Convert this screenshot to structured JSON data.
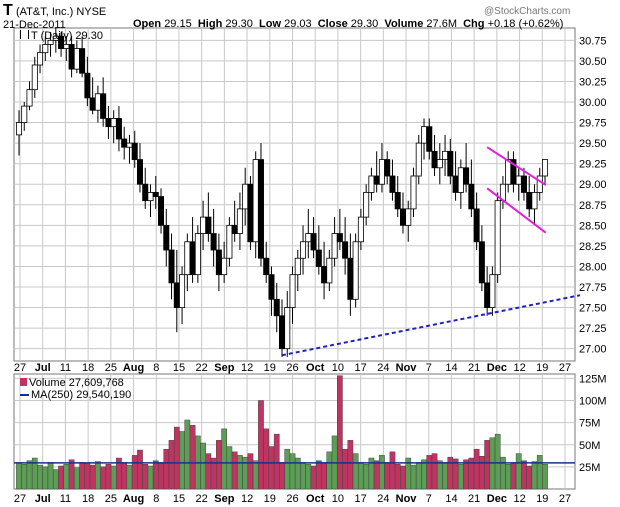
{
  "header": {
    "ticker": "T",
    "company": "(AT&T, Inc.)",
    "exchange": "NYSE",
    "date": "21-Dec-2011",
    "open_label": "Open",
    "open": "29.15",
    "high_label": "High",
    "high": "29.30",
    "low_label": "Low",
    "low": "29.03",
    "close_label": "Close",
    "close": "29.30",
    "volume_label": "Volume",
    "volume": "27.6M",
    "chg_label": "Chg",
    "chg": "+0.18 (+0.62%)",
    "watermark": "@StockCharts.com"
  },
  "price_panel": {
    "legend": "T (Daily) 29.30"
  },
  "volume_panel": {
    "legend_volume": "Volume 27,609,768",
    "legend_ma": "MA(250) 29,540,190"
  },
  "colors": {
    "up": "#2e7d32",
    "down": "#000000",
    "vol_up": "#5c9e55",
    "vol_down": "#c03462",
    "trendline": "#2020c8",
    "channel": "#e020e0",
    "ma": "#1a2f8a",
    "grid": "#c8c8c8"
  },
  "chart_data": {
    "type": "candlestick",
    "price_axis": {
      "ticks": [
        "27.00",
        "27.25",
        "27.50",
        "27.75",
        "28.00",
        "28.25",
        "28.50",
        "28.75",
        "29.00",
        "29.25",
        "29.50",
        "29.75",
        "30.00",
        "30.25",
        "30.50",
        "30.75"
      ],
      "range": [
        26.85,
        30.9
      ]
    },
    "volume_axis": {
      "ticks": [
        "25M",
        "50M",
        "75M",
        "100M",
        "125M"
      ],
      "range": [
        0,
        130000000
      ]
    },
    "x_labels": [
      "27",
      "Jul",
      "11",
      "18",
      "25",
      "Aug",
      "8",
      "15",
      "22",
      "Sep",
      "12",
      "19",
      "26",
      "Oct",
      "10",
      "17",
      "24",
      "Nov",
      "7",
      "14",
      "21",
      "Dec",
      "12",
      "19",
      "27"
    ],
    "ohlc": [
      [
        29.6,
        29.9,
        29.35,
        29.75
      ],
      [
        29.75,
        30.0,
        29.65,
        29.95
      ],
      [
        29.95,
        30.25,
        29.9,
        30.15
      ],
      [
        30.15,
        30.55,
        30.05,
        30.45
      ],
      [
        30.45,
        30.7,
        30.35,
        30.6
      ],
      [
        30.6,
        30.8,
        30.5,
        30.7
      ],
      [
        30.7,
        30.85,
        30.55,
        30.75
      ],
      [
        30.75,
        30.9,
        30.6,
        30.8
      ],
      [
        30.8,
        30.85,
        30.55,
        30.65
      ],
      [
        30.65,
        30.8,
        30.5,
        30.7
      ],
      [
        30.7,
        30.8,
        30.3,
        30.4
      ],
      [
        30.4,
        30.75,
        30.35,
        30.65
      ],
      [
        30.65,
        30.8,
        30.3,
        30.35
      ],
      [
        30.35,
        30.55,
        29.95,
        30.05
      ],
      [
        30.05,
        30.3,
        29.85,
        29.9
      ],
      [
        29.9,
        30.2,
        29.75,
        30.1
      ],
      [
        30.1,
        30.3,
        29.7,
        29.8
      ],
      [
        29.8,
        29.95,
        29.55,
        29.7
      ],
      [
        29.7,
        29.9,
        29.5,
        29.8
      ],
      [
        29.8,
        29.95,
        29.4,
        29.55
      ],
      [
        29.55,
        29.7,
        29.3,
        29.45
      ],
      [
        29.45,
        29.6,
        29.25,
        29.5
      ],
      [
        29.5,
        29.65,
        29.2,
        29.3
      ],
      [
        29.3,
        29.5,
        28.9,
        29.0
      ],
      [
        29.0,
        29.2,
        28.7,
        28.8
      ],
      [
        28.8,
        29.0,
        28.6,
        28.9
      ],
      [
        28.9,
        29.1,
        28.7,
        28.85
      ],
      [
        28.85,
        28.95,
        28.4,
        28.5
      ],
      [
        28.5,
        28.7,
        28.0,
        28.2
      ],
      [
        28.2,
        28.4,
        27.6,
        27.8
      ],
      [
        27.8,
        28.2,
        27.2,
        27.5
      ],
      [
        27.5,
        28.0,
        27.3,
        27.9
      ],
      [
        27.9,
        28.4,
        27.7,
        28.3
      ],
      [
        28.3,
        28.6,
        27.8,
        27.9
      ],
      [
        27.9,
        28.5,
        27.8,
        28.4
      ],
      [
        28.4,
        28.8,
        28.2,
        28.6
      ],
      [
        28.6,
        28.9,
        28.3,
        28.4
      ],
      [
        28.4,
        28.7,
        28.0,
        28.2
      ],
      [
        28.2,
        28.4,
        27.7,
        27.9
      ],
      [
        27.9,
        28.3,
        27.8,
        28.1
      ],
      [
        28.1,
        28.6,
        28.0,
        28.5
      ],
      [
        28.5,
        28.8,
        28.3,
        28.4
      ],
      [
        28.4,
        28.9,
        28.2,
        28.7
      ],
      [
        28.7,
        29.2,
        28.5,
        29.0
      ],
      [
        29.0,
        29.1,
        28.2,
        28.3
      ],
      [
        28.3,
        29.4,
        28.1,
        29.3
      ],
      [
        29.3,
        29.5,
        28.0,
        28.1
      ],
      [
        28.1,
        28.3,
        27.8,
        27.9
      ],
      [
        27.9,
        28.0,
        27.4,
        27.6
      ],
      [
        27.6,
        27.8,
        27.2,
        27.4
      ],
      [
        27.4,
        27.6,
        26.9,
        27.0
      ],
      [
        27.0,
        27.7,
        26.9,
        27.5
      ],
      [
        27.5,
        28.0,
        27.3,
        27.9
      ],
      [
        27.9,
        28.2,
        27.7,
        28.1
      ],
      [
        28.1,
        28.5,
        27.9,
        28.3
      ],
      [
        28.3,
        28.7,
        28.1,
        28.4
      ],
      [
        28.4,
        28.6,
        28.1,
        28.2
      ],
      [
        28.2,
        28.5,
        27.9,
        28.0
      ],
      [
        28.0,
        28.3,
        27.6,
        27.8
      ],
      [
        27.8,
        28.2,
        27.7,
        28.1
      ],
      [
        28.1,
        28.6,
        28.0,
        28.4
      ],
      [
        28.4,
        28.7,
        28.2,
        28.3
      ],
      [
        28.3,
        28.6,
        27.9,
        28.1
      ],
      [
        28.1,
        28.4,
        27.4,
        27.6
      ],
      [
        27.6,
        28.4,
        27.5,
        28.3
      ],
      [
        28.3,
        28.7,
        28.2,
        28.6
      ],
      [
        28.6,
        29.0,
        28.5,
        28.9
      ],
      [
        28.9,
        29.2,
        28.8,
        29.1
      ],
      [
        29.1,
        29.4,
        28.9,
        29.0
      ],
      [
        29.0,
        29.5,
        28.9,
        29.3
      ],
      [
        29.3,
        29.4,
        29.0,
        29.1
      ],
      [
        29.1,
        29.3,
        28.8,
        28.9
      ],
      [
        28.9,
        29.1,
        28.6,
        28.7
      ],
      [
        28.7,
        28.9,
        28.4,
        28.5
      ],
      [
        28.5,
        28.8,
        28.3,
        28.7
      ],
      [
        28.7,
        29.2,
        28.6,
        29.1
      ],
      [
        29.1,
        29.6,
        29.0,
        29.5
      ],
      [
        29.5,
        29.8,
        29.3,
        29.7
      ],
      [
        29.7,
        29.8,
        29.3,
        29.4
      ],
      [
        29.4,
        29.6,
        29.1,
        29.2
      ],
      [
        29.2,
        29.5,
        29.0,
        29.3
      ],
      [
        29.3,
        29.6,
        29.1,
        29.4
      ],
      [
        29.4,
        29.55,
        29.0,
        29.1
      ],
      [
        29.1,
        29.4,
        28.8,
        28.9
      ],
      [
        28.9,
        29.3,
        28.7,
        29.2
      ],
      [
        29.2,
        29.5,
        28.9,
        29.0
      ],
      [
        29.0,
        29.3,
        28.6,
        28.7
      ],
      [
        28.7,
        28.9,
        28.2,
        28.3
      ],
      [
        28.3,
        28.5,
        27.7,
        27.8
      ],
      [
        27.8,
        28.0,
        27.4,
        27.5
      ],
      [
        27.5,
        28.0,
        27.4,
        27.9
      ],
      [
        27.9,
        28.9,
        27.8,
        28.8
      ],
      [
        28.8,
        29.1,
        28.7,
        29.0
      ],
      [
        29.0,
        29.4,
        28.9,
        29.3
      ],
      [
        29.3,
        29.4,
        28.9,
        29.0
      ],
      [
        29.0,
        29.2,
        28.8,
        29.1
      ],
      [
        29.1,
        29.2,
        28.8,
        28.9
      ],
      [
        28.9,
        29.1,
        28.6,
        28.7
      ],
      [
        28.7,
        29.0,
        28.5,
        28.9
      ],
      [
        28.9,
        29.2,
        28.8,
        29.1
      ],
      [
        29.1,
        29.3,
        29.0,
        29.3
      ]
    ],
    "volume": [
      30,
      28,
      32,
      35,
      27,
      25,
      30,
      22,
      26,
      28,
      33,
      24,
      30,
      29,
      27,
      31,
      25,
      28,
      26,
      35,
      30,
      27,
      38,
      44,
      28,
      26,
      32,
      30,
      45,
      55,
      70,
      65,
      78,
      72,
      60,
      52,
      40,
      35,
      55,
      68,
      48,
      42,
      38,
      36,
      40,
      32,
      100,
      68,
      48,
      62,
      30,
      45,
      40,
      35,
      30,
      28,
      26,
      32,
      30,
      42,
      60,
      128,
      45,
      55,
      40,
      30,
      28,
      35,
      32,
      38,
      30,
      42,
      28,
      26,
      35,
      27,
      30,
      33,
      38,
      40,
      32,
      30,
      36,
      34,
      28,
      33,
      35,
      45,
      37,
      55,
      58,
      62,
      36,
      28,
      30,
      40,
      32,
      26,
      31,
      38,
      28
    ],
    "ma250": 29.54
  }
}
